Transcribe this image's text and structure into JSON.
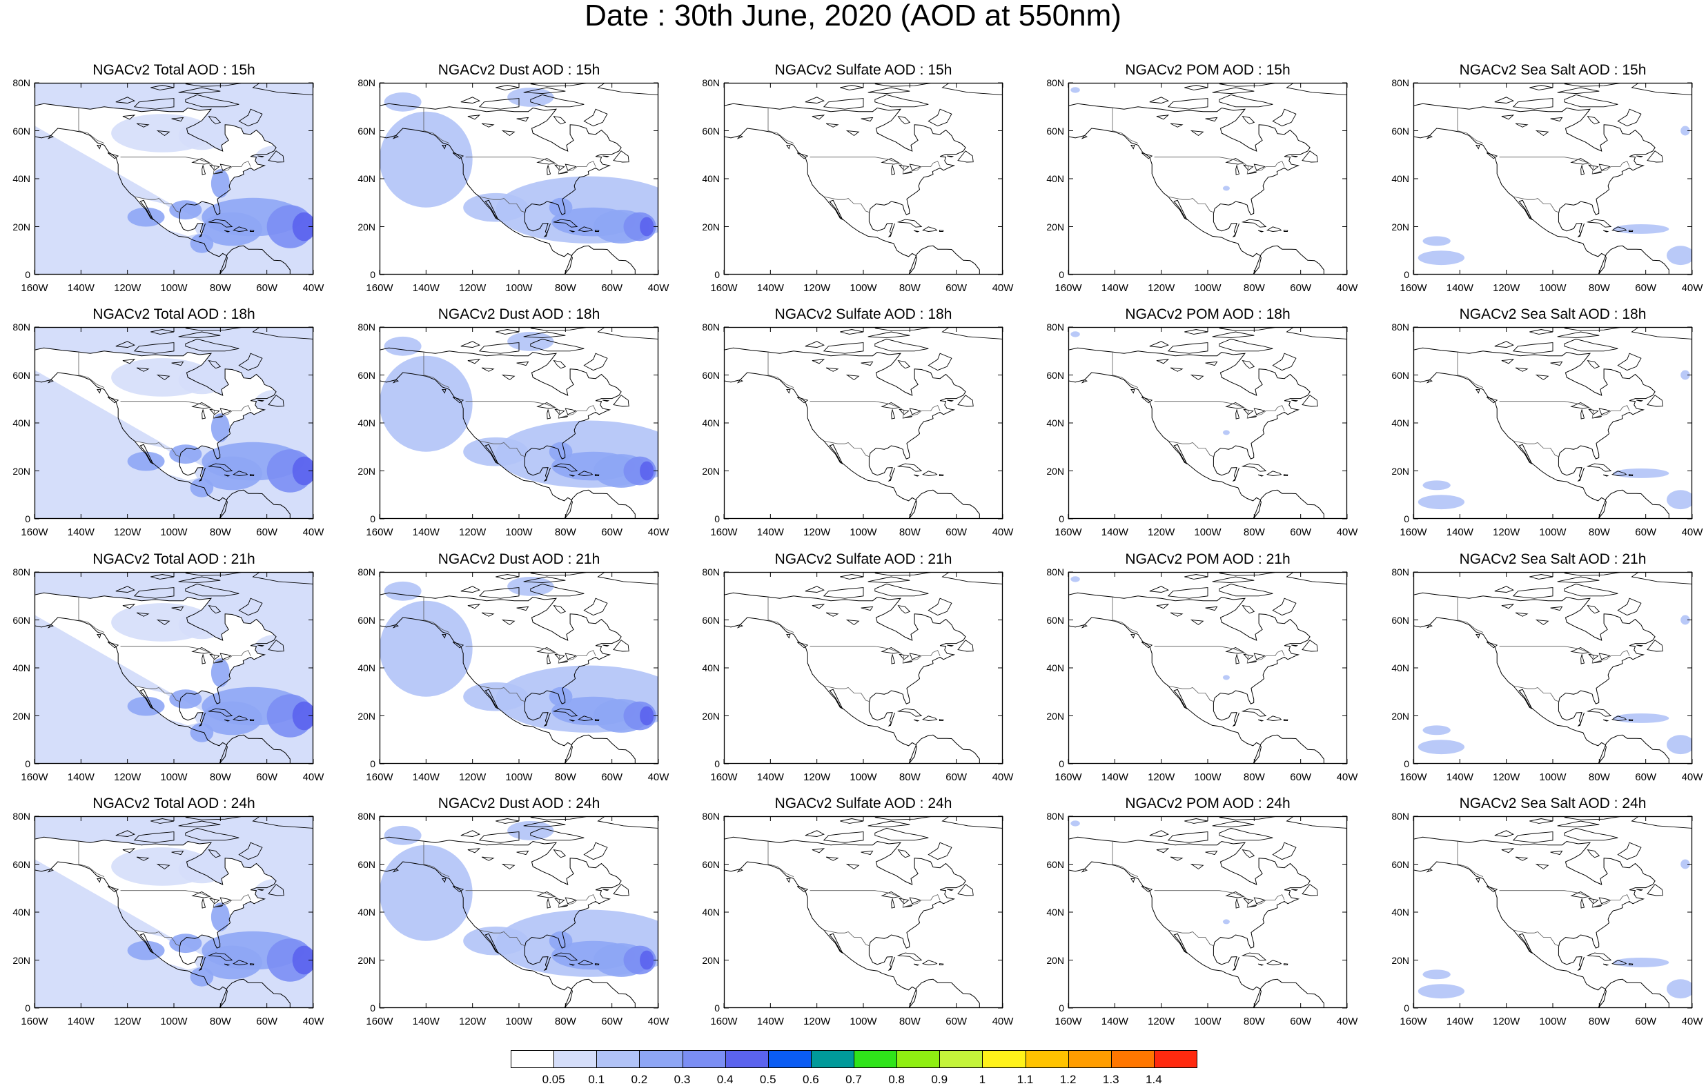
{
  "title": "Date : 30th June, 2020 (AOD at 550nm)",
  "panel_rows": [
    {
      "hour": "15h",
      "panels": [
        {
          "title": "NGACv2 Total AOD : 15h",
          "field": "total"
        },
        {
          "title": "NGACv2 Dust AOD : 15h",
          "field": "dust"
        },
        {
          "title": "NGACv2 Sulfate AOD : 15h",
          "field": "sulfate"
        },
        {
          "title": "NGACv2 POM AOD : 15h",
          "field": "pom"
        },
        {
          "title": "NGACv2 Sea Salt AOD : 15h",
          "field": "seasalt"
        }
      ]
    },
    {
      "hour": "18h",
      "panels": [
        {
          "title": "NGACv2 Total AOD : 18h",
          "field": "total"
        },
        {
          "title": "NGACv2 Dust AOD : 18h",
          "field": "dust"
        },
        {
          "title": "NGACv2 Sulfate AOD : 18h",
          "field": "sulfate"
        },
        {
          "title": "NGACv2 POM AOD : 18h",
          "field": "pom"
        },
        {
          "title": "NGACv2 Sea Salt AOD : 18h",
          "field": "seasalt"
        }
      ]
    },
    {
      "hour": "21h",
      "panels": [
        {
          "title": "NGACv2 Total AOD : 21h",
          "field": "total"
        },
        {
          "title": "NGACv2 Dust AOD : 21h",
          "field": "dust"
        },
        {
          "title": "NGACv2 Sulfate AOD : 21h",
          "field": "sulfate"
        },
        {
          "title": "NGACv2 POM AOD : 21h",
          "field": "pom"
        },
        {
          "title": "NGACv2 Sea Salt AOD : 21h",
          "field": "seasalt"
        }
      ]
    },
    {
      "hour": "24h",
      "panels": [
        {
          "title": "NGACv2 Total AOD : 24h",
          "field": "total"
        },
        {
          "title": "NGACv2 Dust AOD : 24h",
          "field": "dust"
        },
        {
          "title": "NGACv2 Sulfate AOD : 24h",
          "field": "sulfate"
        },
        {
          "title": "NGACv2 POM AOD : 24h",
          "field": "pom"
        },
        {
          "title": "NGACv2 Sea Salt  AOD : 24h",
          "field": "seasalt"
        }
      ]
    }
  ],
  "axes": {
    "lat_ticks": [
      "80N",
      "60N",
      "40N",
      "20N",
      "0"
    ],
    "lon_ticks": [
      "160W",
      "140W",
      "120W",
      "100W",
      "80W",
      "60W",
      "40W"
    ],
    "lon_range": [
      -160,
      -40
    ],
    "lat_range": [
      0,
      80
    ]
  },
  "colorbar": {
    "labels": [
      "0.05",
      "0.1",
      "0.2",
      "0.3",
      "0.4",
      "0.5",
      "0.6",
      "0.7",
      "0.8",
      "0.9",
      "1",
      "1.1",
      "1.2",
      "1.3",
      "1.4"
    ],
    "colors": [
      "#ffffff",
      "#d5defa",
      "#b1c3f7",
      "#8ea6f5",
      "#7b8ef4",
      "#5b63ee",
      "#0a5cf3",
      "#009a9a",
      "#2fe41a",
      "#8fef12",
      "#c4f43a",
      "#fff21a",
      "#ffc300",
      "#ff9d00",
      "#ff7700",
      "#ff2a0f"
    ]
  },
  "coastline_color": "#000000",
  "border_color": "#555555"
}
